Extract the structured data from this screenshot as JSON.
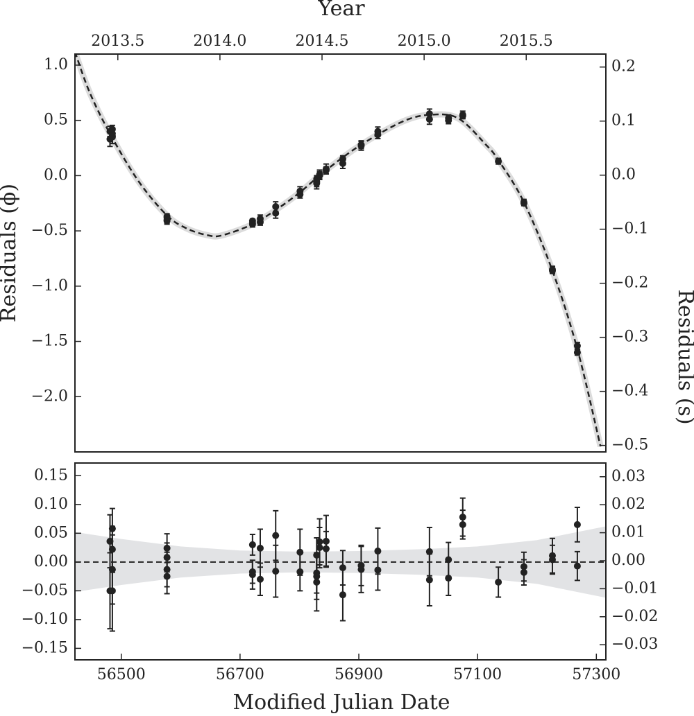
{
  "chart_data": [
    {
      "type": "scatter",
      "y_label": "Residuals (ϕ)",
      "y2_label": "Residuals (s)",
      "x2_label": "Year",
      "xlim": [
        56422,
        57316
      ],
      "x2lim": [
        2013.29,
        2015.89
      ],
      "x2ticks": [
        2013.5,
        {
          "value": 2014,
          "label": "2014.0"
        },
        2014.5,
        {
          "value": 2015,
          "label": "2015.0"
        },
        2015.5
      ],
      "ylim": [
        -2.5,
        1.1
      ],
      "yticks": [
        {
          "value": 1,
          "label": "1.0"
        },
        0.5,
        {
          "value": 0,
          "label": "0.0"
        },
        {
          "value": -0.5,
          "label": "−0.5"
        },
        {
          "value": -1,
          "label": "−1.0"
        },
        {
          "value": -1.5,
          "label": "−1.5"
        },
        {
          "value": -2,
          "label": "−2.0"
        }
      ],
      "y2lim": [
        -0.512,
        0.224
      ],
      "y2ticks": [
        0.2,
        0.1,
        {
          "value": 0,
          "label": "0.0"
        },
        {
          "value": -0.1,
          "label": "−0.1"
        },
        {
          "value": -0.2,
          "label": "−0.2"
        },
        {
          "value": -0.3,
          "label": "−0.3"
        },
        {
          "value": -0.4,
          "label": "−0.4"
        },
        {
          "value": -0.5,
          "label": "−0.5"
        }
      ],
      "color": "#222222",
      "x": [
        56481,
        56485,
        56485,
        56485,
        56481,
        56485,
        56577,
        56577,
        56577,
        56577,
        56721,
        56721,
        56721,
        56734,
        56734,
        56760,
        56760,
        56801,
        56801,
        56829,
        56829,
        56829,
        56829,
        56834,
        56834,
        56845,
        56845,
        56873,
        56873,
        56904,
        56904,
        56932,
        56932,
        57019,
        57019,
        57051,
        57051,
        57075,
        57075,
        57135,
        57178,
        57178,
        57226,
        57226,
        57268,
        57268
      ],
      "values": [
        0.4,
        0.42,
        0.38,
        0.35,
        0.33,
        0.36,
        -0.37,
        -0.38,
        -0.4,
        -0.41,
        -0.41,
        -0.43,
        -0.44,
        -0.39,
        -0.42,
        -0.28,
        -0.34,
        -0.14,
        -0.17,
        -0.03,
        -0.05,
        -0.06,
        -0.07,
        0.01,
        0.0,
        0.06,
        0.05,
        0.15,
        0.11,
        0.28,
        0.27,
        0.4,
        0.37,
        0.56,
        0.51,
        0.52,
        0.5,
        0.55,
        0.54,
        0.13,
        -0.24,
        -0.25,
        -0.85,
        -0.86,
        -1.54,
        -1.6
      ],
      "errors": [
        0.046,
        0.035,
        0.04,
        0.06,
        0.066,
        0.07,
        0.025,
        0.025,
        0.03,
        0.03,
        0.018,
        0.02,
        0.025,
        0.033,
        0.028,
        0.043,
        0.045,
        0.04,
        0.033,
        0.03,
        0.035,
        0.04,
        0.05,
        0.04,
        0.035,
        0.045,
        0.03,
        0.03,
        0.045,
        0.035,
        0.04,
        0.04,
        0.035,
        0.042,
        0.045,
        0.03,
        0.03,
        0.033,
        0.025,
        0.026,
        0.025,
        0.022,
        0.03,
        0.025,
        0.03,
        0.025
      ],
      "fit": {
        "x": [
          56422,
          56447,
          56482,
          56529,
          56577,
          56611,
          56646,
          56670,
          56721,
          56763,
          56801,
          56845,
          56904,
          56974,
          57020,
          57067,
          57114,
          57135,
          57178,
          57226,
          57268,
          57307
        ],
        "values": [
          1.12,
          0.75,
          0.37,
          -0.05,
          -0.36,
          -0.48,
          -0.54,
          -0.54,
          -0.44,
          -0.3,
          -0.15,
          0.05,
          0.28,
          0.49,
          0.55,
          0.52,
          0.28,
          0.14,
          -0.24,
          -0.86,
          -1.57,
          -2.45
        ]
      }
    },
    {
      "type": "scatter",
      "x_label": "Modified Julian Date",
      "xlim": [
        56422,
        57316
      ],
      "xticks": [
        56500,
        56700,
        56900,
        57100,
        57300
      ],
      "ylim": [
        -0.17,
        0.172
      ],
      "yticks": [
        0.15,
        {
          "value": 0.1,
          "label": "0.10"
        },
        0.05,
        {
          "value": 0,
          "label": "0.00"
        },
        {
          "value": -0.05,
          "label": "−0.05"
        },
        {
          "value": -0.1,
          "label": "−0.10"
        },
        {
          "value": -0.15,
          "label": "−0.15"
        }
      ],
      "y2lim": [
        -0.0354,
        0.0349
      ],
      "y2ticks": [
        0.03,
        0.02,
        0.01,
        {
          "value": 0,
          "label": "0.00"
        },
        {
          "value": -0.01,
          "label": "−0.01"
        },
        {
          "value": -0.02,
          "label": "−0.02"
        },
        {
          "value": -0.03,
          "label": "−0.03"
        }
      ],
      "hline": 0,
      "color": "#222222",
      "x": [
        56481,
        56485,
        56485,
        56485,
        56481,
        56485,
        56577,
        56577,
        56577,
        56577,
        56721,
        56721,
        56721,
        56734,
        56734,
        56760,
        56760,
        56801,
        56801,
        56829,
        56829,
        56829,
        56829,
        56834,
        56834,
        56845,
        56845,
        56873,
        56873,
        56904,
        56904,
        56932,
        56932,
        57019,
        57019,
        57051,
        57051,
        57075,
        57075,
        57135,
        57178,
        57178,
        57226,
        57226,
        57268,
        57268
      ],
      "values": [
        0.036,
        0.058,
        0.022,
        -0.013,
        -0.05,
        -0.05,
        0.024,
        0.008,
        -0.013,
        -0.025,
        0.03,
        -0.017,
        -0.022,
        0.024,
        -0.03,
        0.046,
        -0.016,
        0.017,
        -0.017,
        0.012,
        -0.019,
        -0.025,
        -0.035,
        0.035,
        0.025,
        0.036,
        0.023,
        -0.01,
        -0.057,
        -0.006,
        -0.013,
        0.019,
        -0.014,
        0.018,
        -0.031,
        0.004,
        -0.028,
        0.078,
        0.065,
        -0.035,
        -0.008,
        -0.018,
        0.011,
        0.004,
        0.065,
        -0.007
      ],
      "errors": [
        0.046,
        0.035,
        0.04,
        0.06,
        0.066,
        0.07,
        0.025,
        0.025,
        0.03,
        0.03,
        0.018,
        0.02,
        0.025,
        0.033,
        0.028,
        0.043,
        0.045,
        0.04,
        0.033,
        0.03,
        0.035,
        0.04,
        0.05,
        0.04,
        0.035,
        0.045,
        0.03,
        0.03,
        0.045,
        0.035,
        0.04,
        0.04,
        0.035,
        0.042,
        0.045,
        0.03,
        0.03,
        0.033,
        0.025,
        0.026,
        0.025,
        0.022,
        0.03,
        0.025,
        0.03,
        0.025
      ],
      "band": {
        "x": [
          56422,
          56500,
          56600,
          56700,
          56800,
          56900,
          57000,
          57100,
          57200,
          57316
        ],
        "upper": [
          0.052,
          0.04,
          0.027,
          0.02,
          0.018,
          0.019,
          0.022,
          0.027,
          0.038,
          0.062
        ],
        "lower": [
          -0.052,
          -0.04,
          -0.027,
          -0.02,
          -0.018,
          -0.019,
          -0.022,
          -0.027,
          -0.038,
          -0.062
        ]
      }
    }
  ]
}
